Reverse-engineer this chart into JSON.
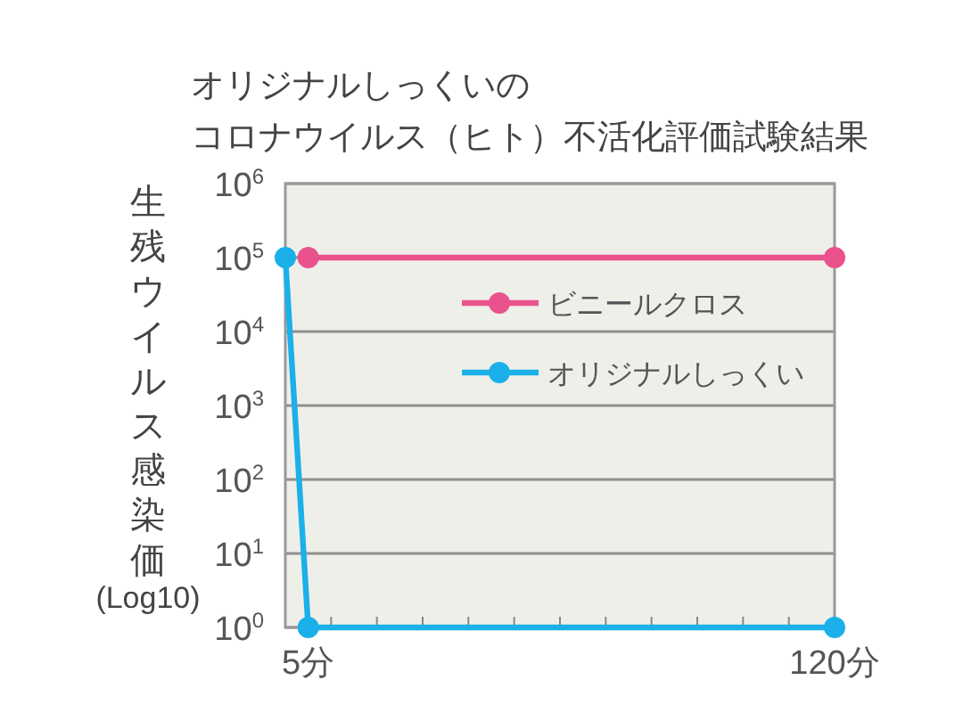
{
  "chart_data": {
    "type": "line",
    "title": "オリジナルしっくいのコロナウイルス（ヒト）不活化評価試験結果",
    "ylabel": "生残ウイルス感染価\n(Log10)",
    "log": "y",
    "xlim": [
      0,
      120
    ],
    "xticks": [
      {
        "value": 5,
        "label": "5分"
      },
      {
        "value": 10,
        "label": null
      },
      {
        "value": 20,
        "label": null
      },
      {
        "value": 30,
        "label": null
      },
      {
        "value": 40,
        "label": null
      },
      {
        "value": 50,
        "label": null
      },
      {
        "value": 60,
        "label": null
      },
      {
        "value": 70,
        "label": null
      },
      {
        "value": 80,
        "label": null
      },
      {
        "value": 90,
        "label": null
      },
      {
        "value": 100,
        "label": null
      },
      {
        "value": 110,
        "label": null
      },
      {
        "value": 120,
        "label": "120分"
      }
    ],
    "ylim": [
      1,
      1000000
    ],
    "yticks": [
      {
        "value": 1,
        "label": "10$^{0}$"
      },
      {
        "value": 10,
        "label": "10$^{1}$"
      },
      {
        "value": 100,
        "label": "10$^{2}$"
      },
      {
        "value": 1000,
        "label": "10$^{3}$"
      },
      {
        "value": 10000,
        "label": "10$^{4}$"
      },
      {
        "value": 100000,
        "label": "10$^{5}$"
      },
      {
        "value": 1000000,
        "label": "10$^{6}$"
      }
    ],
    "grid": "y",
    "legend": "top right",
    "marker": "circle",
    "series": [
      {
        "name": "ビニールクロス",
        "color": "#e9528d",
        "x": [
          5,
          120
        ],
        "values": [
          100000,
          100000
        ]
      },
      {
        "name": "オリジナルしっくい",
        "color": "#1bb0e9",
        "x": [
          0,
          5,
          120
        ],
        "values": [
          100000,
          1,
          1
        ]
      }
    ]
  }
}
